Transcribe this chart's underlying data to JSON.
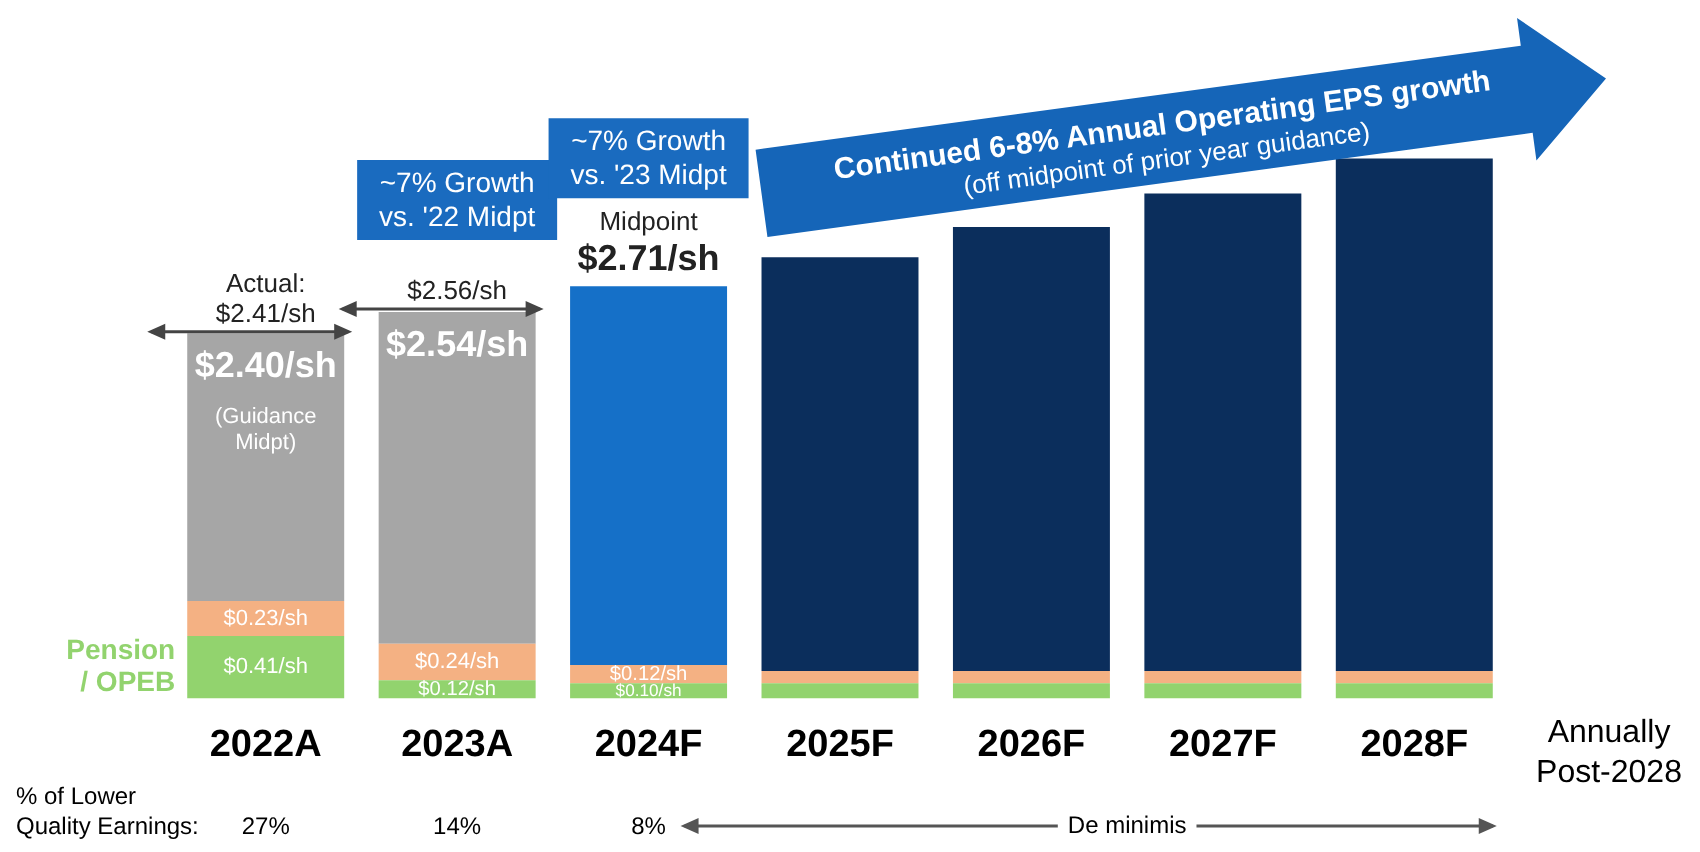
{
  "chart_data": {
    "type": "bar",
    "stacked": true,
    "legend": false,
    "grid": false,
    "tick_labels": "x",
    "categories": [
      "2022A",
      "2023A",
      "2024F",
      "2025F",
      "2026F",
      "2027F",
      "2028F"
    ],
    "series": [
      {
        "name": "Pension / OPEB",
        "color": "#92d36e",
        "values": [
          0.41,
          0.12,
          0.1,
          0.1,
          0.1,
          0.1,
          0.1
        ],
        "value_labels": [
          "$0.41/sh",
          "$0.12/sh",
          "$0.10/sh",
          null,
          null,
          null,
          null
        ]
      },
      {
        "color": "#f4b183",
        "values": [
          0.23,
          0.24,
          0.12,
          0.08,
          0.08,
          0.08,
          0.08
        ],
        "value_labels": [
          "$0.23/sh",
          "$0.24/sh",
          "$0.12/sh",
          null,
          null,
          null,
          null
        ]
      },
      {
        "colors": [
          "#a6a6a6",
          "#a6a6a6",
          "#1570c8",
          "#0b2e5c",
          "#0b2e5c",
          "#0b2e5c",
          "#0b2e5c"
        ],
        "values": [
          1.76,
          2.18,
          2.49,
          2.72,
          2.92,
          3.14,
          3.37
        ]
      }
    ],
    "totals": [
      "$2.40/sh",
      "$2.54/sh",
      "$2.71/sh",
      null,
      null,
      null,
      null
    ],
    "annotations": [
      {
        "text": "Actual: $2.41/sh",
        "x": "2022A",
        "y": 2.41
      },
      {
        "text": "$2.56/sh",
        "x": "2023A",
        "y": 2.56
      },
      "(Guidance Midpt)",
      "~7% Growth vs. '22 Midpt",
      "Midpoint",
      "~7% Growth vs. '23 Midpt",
      "Continued 6-8% Annual Operating EPS growth",
      "(off midpoint of prior year guidance)",
      "% of Lower Quality Earnings:",
      "27%",
      "14%",
      "8%",
      "De minimis",
      "Annually Post-2028"
    ]
  }
}
